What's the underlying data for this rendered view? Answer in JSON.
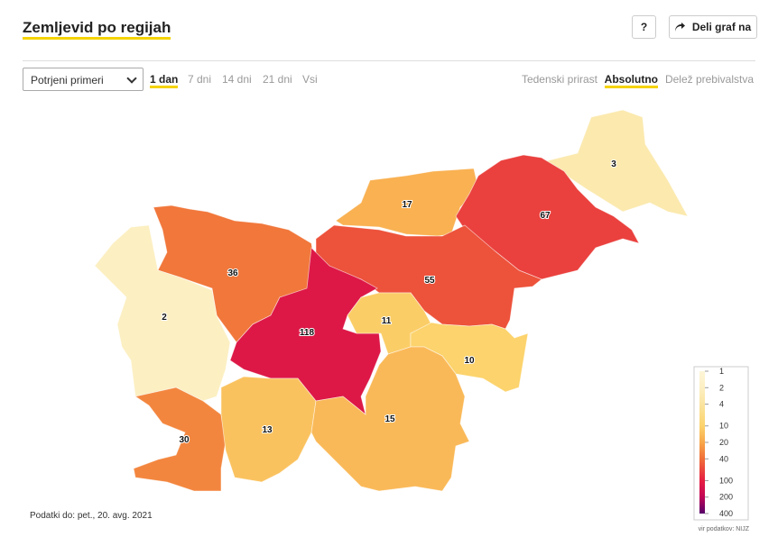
{
  "header": {
    "title": "Zemljevid po regijah",
    "help": "?",
    "share": "Deli graf na"
  },
  "controls": {
    "select": "Potrjeni primeri",
    "periods": [
      "1 dan",
      "7 dni",
      "14 dni",
      "21 dni",
      "Vsi"
    ],
    "active_period": 0,
    "measures": [
      "Tedenski prirast",
      "Absolutno",
      "Delež prebivalstva"
    ],
    "active_measure": 1
  },
  "map": {
    "regions": [
      {
        "value": 3
      },
      {
        "value": 17
      },
      {
        "value": 67
      },
      {
        "value": 36
      },
      {
        "value": 55
      },
      {
        "value": 2
      },
      {
        "value": 118
      },
      {
        "value": 11
      },
      {
        "value": 10
      },
      {
        "value": 30
      },
      {
        "value": 13
      },
      {
        "value": 15
      }
    ],
    "legend": {
      "ticks": [
        1,
        2,
        4,
        10,
        20,
        40,
        100,
        200,
        400
      ],
      "colors": [
        "#fdf5d8",
        "#fcefc2",
        "#fae4a0",
        "#fcd36c",
        "#f8a74a",
        "#f06e38",
        "#e61e42",
        "#c10656",
        "#55006a"
      ]
    },
    "footnote": "Podatki do: pet., 20. avg. 2021",
    "source": "vir podatkov: NIJZ"
  }
}
